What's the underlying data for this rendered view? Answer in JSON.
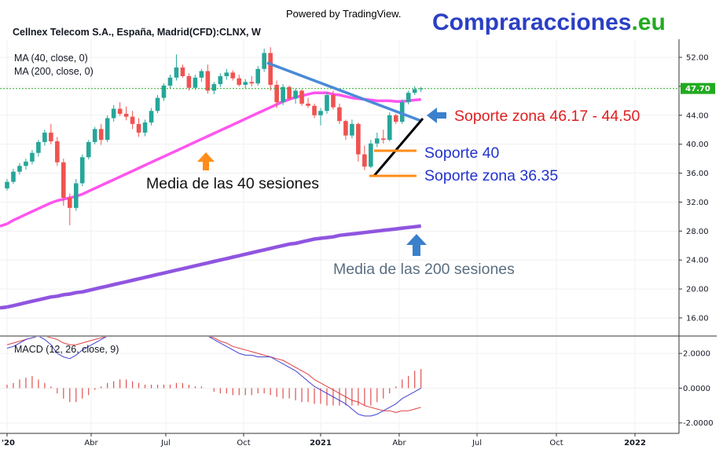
{
  "header": {
    "powered_by": "Powered by TradingView.",
    "brand_main": "Compraracciones",
    "brand_tld": ".eu",
    "symbol_title": "Cellnex Telecom S.A., España, Madrid(CFD):CLNX, W",
    "ma40_label": "MA (40, close, 0)",
    "ma200_label": "MA (200, close, 0)",
    "macd_label": "MACD (12, 26, close, 9)"
  },
  "annotations": {
    "soporte_zona_top": "Soporte zona 46.17 - 44.50",
    "soporte_40": "Soporte 40",
    "soporte_zona_36": "Soporte zona 36.35",
    "media_40": "Media de las 40 sesiones",
    "media_200": "Media de las 200 sesiones"
  },
  "colors": {
    "up": "#26a69a",
    "down": "#ef5350",
    "ma40": "#ff55ee",
    "ma200": "#9055e0",
    "trendline": "#4a8ad8",
    "support_line": "#ff8c1a",
    "red_text": "#e02020",
    "blue_text": "#2233cc",
    "gray_text": "#5a6e80",
    "brand": "#2b3fc4",
    "brand_tld": "#22aa22",
    "price_badge": "#22aa22",
    "macd_line": "#4040d0",
    "signal_line": "#e04040"
  },
  "chart_data": {
    "type": "candlestick",
    "title": "Cellnex Telecom S.A., España, Madrid(CFD):CLNX, W",
    "current_price": 47.7,
    "current_price_label": "47.70",
    "y_ticks": [
      "52.00",
      "48.00",
      "44.00",
      "40.00",
      "36.00",
      "32.00",
      "28.00",
      "24.00",
      "20.00",
      "16.00"
    ],
    "y_tick_values": [
      52,
      48,
      44,
      40,
      36,
      32,
      28,
      24,
      20,
      16
    ],
    "ylim": [
      13.5,
      54.5
    ],
    "x_labels": [
      "'20",
      "Abr",
      "Jul",
      "Oct",
      "2021",
      "Abr",
      "Jul",
      "Oct",
      "2022"
    ],
    "grid": true,
    "candles": [
      [
        33.9,
        35.2,
        33.6,
        34.8
      ],
      [
        34.8,
        36.6,
        34.5,
        36.2
      ],
      [
        36.2,
        37.4,
        35.8,
        37.0
      ],
      [
        37.0,
        38.0,
        36.5,
        37.6
      ],
      [
        37.6,
        39.2,
        37.2,
        38.8
      ],
      [
        38.8,
        40.6,
        38.3,
        40.3
      ],
      [
        40.3,
        42.0,
        39.8,
        41.6
      ],
      [
        41.6,
        42.8,
        40.0,
        40.4
      ],
      [
        40.4,
        41.0,
        37.0,
        37.5
      ],
      [
        37.5,
        38.0,
        31.5,
        32.6
      ],
      [
        32.6,
        33.2,
        28.8,
        31.2
      ],
      [
        31.2,
        35.2,
        30.8,
        34.6
      ],
      [
        34.6,
        38.6,
        34.2,
        38.2
      ],
      [
        38.2,
        40.6,
        37.9,
        40.3
      ],
      [
        40.3,
        42.4,
        40.0,
        42.1
      ],
      [
        42.1,
        42.8,
        39.9,
        40.6
      ],
      [
        40.6,
        44.0,
        40.3,
        43.6
      ],
      [
        43.6,
        45.4,
        43.1,
        44.9
      ],
      [
        44.9,
        45.8,
        43.9,
        44.2
      ],
      [
        44.2,
        45.2,
        43.3,
        43.8
      ],
      [
        43.8,
        44.6,
        42.1,
        42.8
      ],
      [
        42.8,
        43.6,
        41.0,
        41.6
      ],
      [
        41.6,
        43.4,
        41.1,
        43.0
      ],
      [
        43.0,
        45.0,
        42.6,
        44.6
      ],
      [
        44.6,
        46.8,
        44.3,
        46.4
      ],
      [
        46.4,
        48.4,
        46.0,
        48.1
      ],
      [
        48.1,
        49.6,
        47.7,
        49.2
      ],
      [
        49.2,
        52.4,
        48.8,
        50.6
      ],
      [
        50.6,
        51.0,
        49.2,
        49.4
      ],
      [
        49.4,
        49.8,
        47.4,
        47.8
      ],
      [
        47.8,
        49.6,
        47.5,
        49.2
      ],
      [
        49.2,
        50.4,
        48.6,
        50.1
      ],
      [
        50.1,
        51.0,
        47.0,
        47.4
      ],
      [
        47.4,
        48.6,
        46.9,
        48.3
      ],
      [
        48.3,
        49.8,
        47.9,
        49.4
      ],
      [
        49.4,
        50.4,
        48.9,
        49.9
      ],
      [
        49.9,
        50.2,
        48.8,
        49.1
      ],
      [
        49.1,
        49.6,
        48.0,
        48.2
      ],
      [
        48.2,
        49.0,
        47.7,
        48.6
      ],
      [
        48.6,
        49.4,
        48.0,
        48.4
      ],
      [
        48.4,
        50.8,
        48.1,
        50.4
      ],
      [
        50.4,
        53.2,
        50.0,
        52.6
      ],
      [
        52.6,
        53.4,
        47.4,
        48.2
      ],
      [
        48.2,
        48.8,
        45.0,
        45.8
      ],
      [
        45.8,
        48.3,
        45.4,
        47.9
      ],
      [
        47.9,
        48.1,
        46.0,
        46.3
      ],
      [
        46.3,
        47.7,
        45.6,
        47.4
      ],
      [
        47.4,
        47.6,
        45.3,
        45.6
      ],
      [
        45.6,
        46.4,
        45.0,
        45.3
      ],
      [
        45.3,
        45.6,
        43.6,
        44.0
      ],
      [
        44.0,
        45.0,
        42.6,
        44.6
      ],
      [
        44.6,
        47.2,
        44.2,
        46.8
      ],
      [
        46.8,
        47.4,
        44.8,
        45.1
      ],
      [
        45.1,
        45.6,
        42.8,
        43.2
      ],
      [
        43.2,
        43.4,
        40.6,
        41.2
      ],
      [
        41.2,
        43.4,
        40.8,
        42.8
      ],
      [
        42.8,
        43.0,
        37.6,
        38.6
      ],
      [
        38.6,
        39.8,
        36.4,
        36.9
      ],
      [
        36.9,
        40.6,
        36.7,
        40.1
      ],
      [
        40.1,
        41.6,
        39.6,
        40.8
      ],
      [
        40.8,
        42.0,
        40.1,
        40.6
      ],
      [
        40.6,
        44.4,
        40.4,
        44.0
      ],
      [
        44.0,
        44.2,
        42.8,
        43.1
      ],
      [
        43.1,
        46.2,
        42.8,
        45.8
      ],
      [
        45.8,
        47.4,
        45.5,
        47.1
      ],
      [
        47.1,
        48.0,
        46.8,
        47.6
      ],
      [
        47.6,
        47.9,
        47.2,
        47.7
      ]
    ],
    "ma40": [
      29.0,
      29.5,
      29.9,
      30.3,
      30.7,
      31.1,
      31.5,
      31.9,
      32.2,
      32.4,
      32.6,
      32.8,
      33.1,
      33.5,
      33.9,
      34.3,
      34.7,
      35.1,
      35.5,
      35.9,
      36.3,
      36.7,
      37.1,
      37.5,
      37.9,
      38.3,
      38.7,
      39.1,
      39.5,
      39.9,
      40.3,
      40.7,
      41.1,
      41.5,
      41.9,
      42.3,
      42.7,
      43.1,
      43.5,
      43.9,
      44.3,
      44.7,
      45.1,
      45.5,
      45.9,
      46.2,
      46.5,
      46.7,
      46.9,
      47.1,
      47.1,
      47.1,
      46.9,
      46.8,
      46.6,
      46.4,
      46.3,
      46.2,
      46.1,
      46.0,
      46.0,
      46.0,
      45.9,
      45.9,
      46.0,
      46.1,
      46.17
    ],
    "ma200": [
      17.5,
      17.7,
      17.9,
      18.1,
      18.3,
      18.5,
      18.7,
      18.9,
      19.0,
      19.2,
      19.3,
      19.5,
      19.6,
      19.8,
      20.0,
      20.2,
      20.4,
      20.6,
      20.8,
      21.0,
      21.2,
      21.4,
      21.6,
      21.8,
      22.0,
      22.2,
      22.4,
      22.6,
      22.8,
      23.0,
      23.2,
      23.4,
      23.6,
      23.8,
      24.0,
      24.2,
      24.4,
      24.6,
      24.8,
      25.0,
      25.2,
      25.4,
      25.6,
      25.8,
      26.0,
      26.2,
      26.3,
      26.5,
      26.7,
      26.9,
      27.0,
      27.1,
      27.2,
      27.4,
      27.5,
      27.6,
      27.7,
      27.8,
      27.9,
      28.0,
      28.1,
      28.2,
      28.3,
      28.4,
      28.5,
      28.6,
      28.7
    ],
    "macd": {
      "label": "MACD (12, 26, close, 9)",
      "y_ticks": [
        "2.0000",
        "0.0000",
        "-2.0000"
      ],
      "y_tick_values": [
        2,
        0,
        -2
      ],
      "ylim": [
        -2.6,
        3.0
      ],
      "histogram": [
        0.2,
        0.3,
        0.5,
        0.6,
        0.7,
        0.5,
        0.3,
        0.1,
        -0.3,
        -0.6,
        -0.8,
        -0.8,
        -0.6,
        -0.4,
        -0.1,
        0.1,
        0.3,
        0.4,
        0.5,
        0.5,
        0.4,
        0.3,
        0.2,
        0.2,
        0.2,
        0.2,
        0.2,
        0.3,
        0.3,
        0.2,
        0.1,
        0.1,
        0.0,
        -0.2,
        -0.3,
        -0.3,
        -0.4,
        -0.4,
        -0.4,
        -0.4,
        -0.3,
        -0.3,
        -0.4,
        -0.5,
        -0.6,
        -0.6,
        -0.7,
        -0.8,
        -0.8,
        -0.9,
        -0.9,
        -1.0,
        -1.0,
        -1.0,
        -1.0,
        -1.0,
        -1.0,
        -1.0,
        -1.0,
        -0.8,
        -0.6,
        -0.3,
        0.1,
        0.5,
        0.7,
        1.0,
        1.1
      ],
      "macd_line": [
        2.3,
        2.4,
        2.6,
        2.8,
        2.9,
        3.0,
        2.8,
        2.5,
        2.0,
        1.8,
        1.7,
        1.9,
        2.2,
        2.4,
        2.6,
        2.8,
        3.0,
        3.2,
        3.3,
        3.4,
        3.4,
        3.3,
        3.2,
        3.2,
        3.3,
        3.4,
        3.5,
        3.6,
        3.5,
        3.3,
        3.2,
        3.1,
        3.0,
        2.8,
        2.6,
        2.4,
        2.2,
        2.0,
        1.9,
        1.9,
        1.8,
        1.8,
        1.8,
        1.6,
        1.4,
        1.2,
        1.0,
        0.7,
        0.4,
        0.1,
        -0.1,
        -0.3,
        -0.5,
        -0.7,
        -0.9,
        -1.2,
        -1.5,
        -1.6,
        -1.6,
        -1.5,
        -1.3,
        -1.1,
        -0.9,
        -0.6,
        -0.4,
        -0.2,
        0.0
      ],
      "signal_line": [
        2.5,
        2.6,
        2.7,
        2.8,
        2.9,
        3.0,
        3.0,
        2.9,
        2.8,
        2.6,
        2.5,
        2.5,
        2.6,
        2.7,
        2.8,
        2.9,
        3.0,
        3.1,
        3.2,
        3.3,
        3.4,
        3.4,
        3.4,
        3.4,
        3.4,
        3.4,
        3.4,
        3.4,
        3.4,
        3.4,
        3.3,
        3.2,
        3.0,
        2.9,
        2.7,
        2.6,
        2.4,
        2.3,
        2.2,
        2.1,
        2.0,
        1.9,
        1.8,
        1.7,
        1.6,
        1.4,
        1.2,
        1.0,
        0.8,
        0.5,
        0.3,
        0.1,
        -0.1,
        -0.3,
        -0.5,
        -0.7,
        -0.8,
        -1.0,
        -1.1,
        -1.2,
        -1.3,
        -1.3,
        -1.4,
        -1.3,
        -1.3,
        -1.2,
        -1.1
      ]
    }
  }
}
